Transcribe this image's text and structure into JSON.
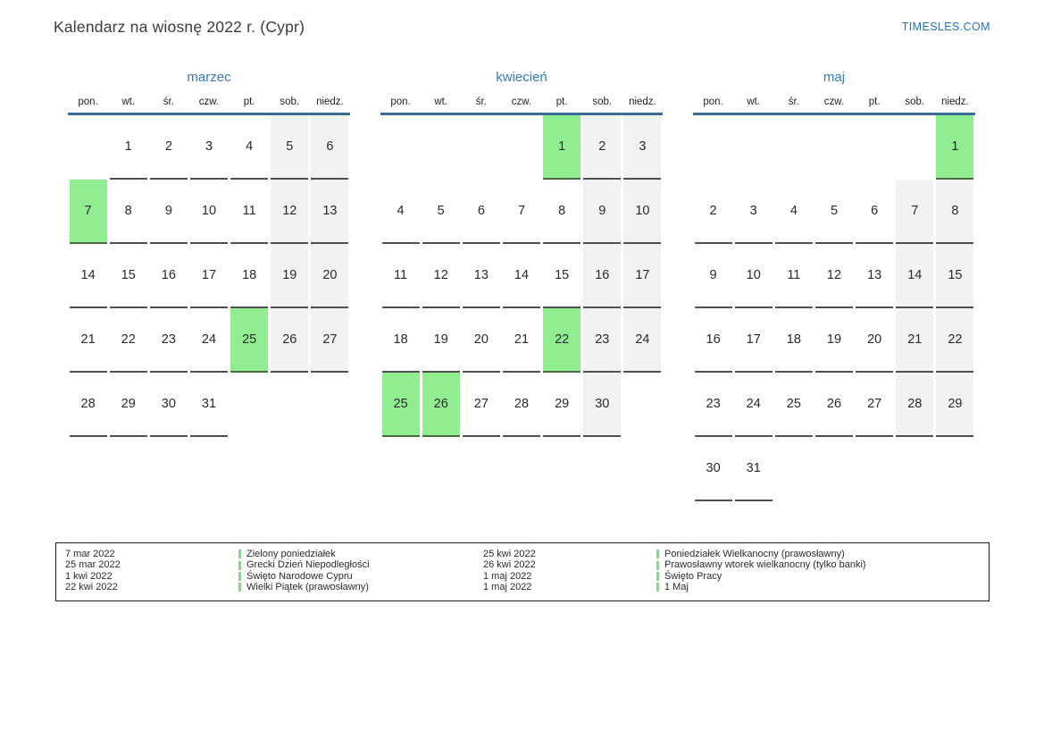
{
  "header": {
    "title": "Kalendarz na wiosnę 2022 r. (Cypr)",
    "site_link": "TIMESLES.COM"
  },
  "weekday_headers": [
    "pon.",
    "wt.",
    "śr.",
    "czw.",
    "pt.",
    "sob.",
    "niedz."
  ],
  "months": [
    {
      "id": "marzec",
      "name": "marzec",
      "holidays": [
        7,
        25
      ],
      "weeks": [
        [
          null,
          1,
          2,
          3,
          4,
          5,
          6
        ],
        [
          7,
          8,
          9,
          10,
          11,
          12,
          13
        ],
        [
          14,
          15,
          16,
          17,
          18,
          19,
          20
        ],
        [
          21,
          22,
          23,
          24,
          25,
          26,
          27
        ],
        [
          28,
          29,
          30,
          31,
          null,
          null,
          null
        ]
      ]
    },
    {
      "id": "kwiecien",
      "name": "kwiecień",
      "holidays": [
        1,
        22,
        25,
        26
      ],
      "weeks": [
        [
          null,
          null,
          null,
          null,
          1,
          2,
          3
        ],
        [
          4,
          5,
          6,
          7,
          8,
          9,
          10
        ],
        [
          11,
          12,
          13,
          14,
          15,
          16,
          17
        ],
        [
          18,
          19,
          20,
          21,
          22,
          23,
          24
        ],
        [
          25,
          26,
          27,
          28,
          29,
          30,
          null
        ]
      ]
    },
    {
      "id": "maj",
      "name": "maj",
      "holidays": [
        1
      ],
      "weeks": [
        [
          null,
          null,
          null,
          null,
          null,
          null,
          1
        ],
        [
          2,
          3,
          4,
          5,
          6,
          7,
          8
        ],
        [
          9,
          10,
          11,
          12,
          13,
          14,
          15
        ],
        [
          16,
          17,
          18,
          19,
          20,
          21,
          22
        ],
        [
          23,
          24,
          25,
          26,
          27,
          28,
          29
        ],
        [
          30,
          31,
          null,
          null,
          null,
          null,
          null
        ]
      ]
    }
  ],
  "legend": [
    {
      "date": "7 mar 2022",
      "name": "Zielony poniedziałek"
    },
    {
      "date": "25 mar 2022",
      "name": "Grecki Dzień Niepodległości"
    },
    {
      "date": "1 kwi 2022",
      "name": "Święto Narodowe Cypru"
    },
    {
      "date": "22 kwi 2022",
      "name": "Wielki Piątek (prawosławny)"
    },
    {
      "date": "25 kwi 2022",
      "name": "Poniedziałek Wielkanocny (prawosławny)"
    },
    {
      "date": "26 kwi 2022",
      "name": "Prawosławny wtorek wielkanocny (tylko banki)"
    },
    {
      "date": "1 maj 2022",
      "name": "Święto Pracy"
    },
    {
      "date": "1 maj 2022",
      "name": "1 Maj"
    }
  ],
  "colors": {
    "accent_blue": "#3779bc",
    "link_blue": "#2173c2",
    "header_line": "#3e6b99",
    "holiday_green": "#90ee90",
    "weekend_bg": "#f2f2f2",
    "legend_bar_green": "#74e274"
  }
}
